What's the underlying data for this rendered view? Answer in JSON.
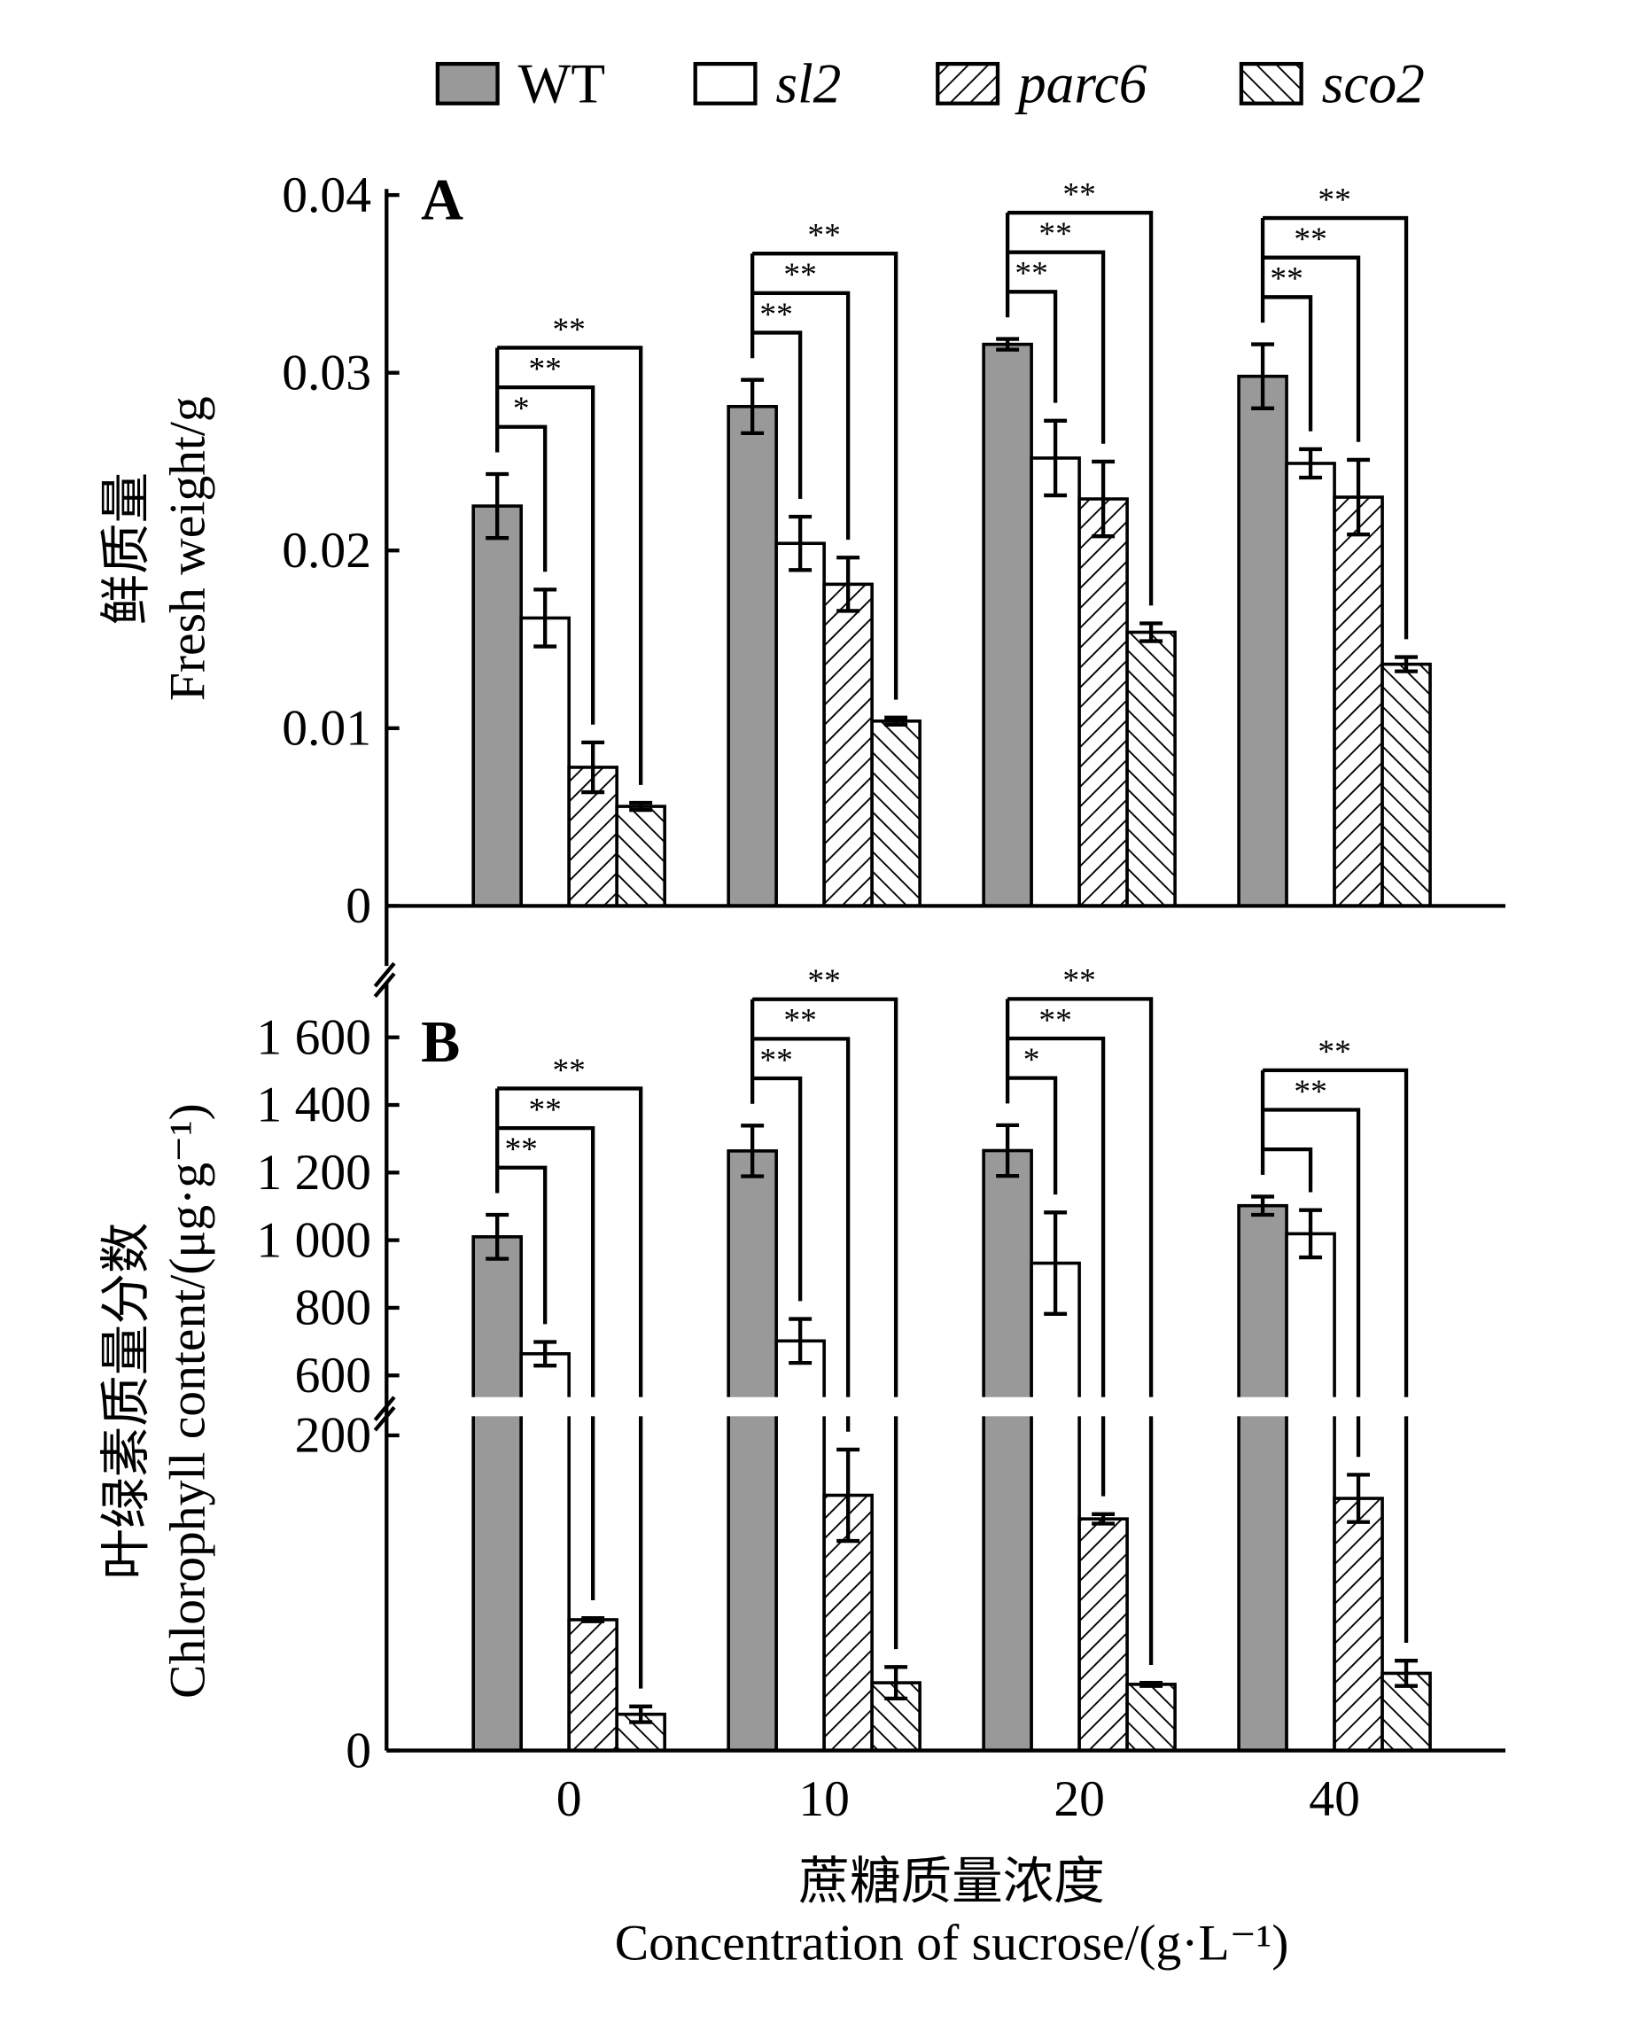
{
  "legend": [
    {
      "name": "WT",
      "fill": "#999999",
      "pattern": "solid",
      "italic": false
    },
    {
      "name": "sl2",
      "fill": "#ffffff",
      "pattern": "none",
      "italic": true
    },
    {
      "name": "parc6",
      "fill": "#ffffff",
      "pattern": "forward-hatch",
      "italic": true
    },
    {
      "name": "sco2",
      "fill": "#ffffff",
      "pattern": "back-hatch",
      "italic": true
    }
  ],
  "x_axis": {
    "title_cn": "蔗糖质量浓度",
    "title_en": "Concentration of sucrose/(g·L⁻¹)"
  },
  "chart_data": [
    {
      "type": "bar",
      "panel": "A",
      "title": "A",
      "ylabel_cn": "鲜质量",
      "ylabel_en": "Fresh weight/g",
      "xlabel": "Concentration of sucrose/(g·L⁻¹)",
      "categories": [
        "0",
        "10",
        "20",
        "40"
      ],
      "ylim": [
        0,
        0.04
      ],
      "yticks": [
        0,
        0.01,
        0.02,
        0.03,
        0.04
      ],
      "ytick_labels": [
        "0",
        "0.01",
        "0.02",
        "0.03",
        "0.04"
      ],
      "series": [
        {
          "name": "WT",
          "values": [
            0.0225,
            0.0281,
            0.0316,
            0.0298
          ],
          "errors": [
            0.0018,
            0.0015,
            0.0003,
            0.0018
          ]
        },
        {
          "name": "sl2",
          "values": [
            0.0162,
            0.0204,
            0.0252,
            0.0249
          ],
          "errors": [
            0.0016,
            0.0015,
            0.0021,
            0.0008
          ]
        },
        {
          "name": "parc6",
          "values": [
            0.0078,
            0.0181,
            0.0229,
            0.023
          ],
          "errors": [
            0.0014,
            0.0015,
            0.0021,
            0.0021
          ]
        },
        {
          "name": "sco2",
          "values": [
            0.0056,
            0.0104,
            0.0154,
            0.0136
          ],
          "errors": [
            0.0002,
            0.0002,
            0.0005,
            0.0004
          ]
        }
      ],
      "significance": [
        [
          {
            "target": "sl2",
            "label": "*"
          },
          {
            "target": "parc6",
            "label": "**"
          },
          {
            "target": "sco2",
            "label": "**"
          }
        ],
        [
          {
            "target": "sl2",
            "label": "**"
          },
          {
            "target": "parc6",
            "label": "**"
          },
          {
            "target": "sco2",
            "label": "**"
          }
        ],
        [
          {
            "target": "sl2",
            "label": "**"
          },
          {
            "target": "parc6",
            "label": "**"
          },
          {
            "target": "sco2",
            "label": "**"
          }
        ],
        [
          {
            "target": "sl2",
            "label": "**"
          },
          {
            "target": "parc6",
            "label": "**"
          },
          {
            "target": "sco2",
            "label": "**"
          }
        ]
      ]
    },
    {
      "type": "bar",
      "panel": "B",
      "title": "B",
      "ylabel_cn": "叶绿素质量分数",
      "ylabel_en": "Chlorophyll content/(μg·g⁻¹)",
      "xlabel": "Concentration of sucrose/(g·L⁻¹)",
      "categories": [
        "0",
        "10",
        "20",
        "40"
      ],
      "ylim": [
        0,
        1700
      ],
      "axis_break": [
        200,
        600
      ],
      "yticks": [
        0,
        200,
        600,
        800,
        1000,
        1200,
        1400,
        1600
      ],
      "ytick_labels": [
        "0",
        "200",
        "600",
        "800",
        "1 000",
        "1 200",
        "1 400",
        "1 600"
      ],
      "series": [
        {
          "name": "WT",
          "values": [
            1010,
            1264,
            1265,
            1102
          ],
          "errors": [
            65,
            75,
            75,
            27
          ]
        },
        {
          "name": "sl2",
          "values": [
            664,
            702,
            932,
            1019
          ],
          "errors": [
            35,
            65,
            150,
            70
          ]
        },
        {
          "name": "parc6",
          "values": [
            83,
            162,
            147,
            160
          ],
          "errors": [
            1,
            29,
            3,
            15
          ]
        },
        {
          "name": "sco2",
          "values": [
            23,
            43,
            42,
            49
          ],
          "errors": [
            5,
            10,
            1,
            8
          ]
        }
      ],
      "significance": [
        [
          {
            "target": "sl2",
            "label": "**"
          },
          {
            "target": "parc6",
            "label": "**"
          },
          {
            "target": "sco2",
            "label": "**"
          }
        ],
        [
          {
            "target": "sl2",
            "label": "**"
          },
          {
            "target": "parc6",
            "label": "**"
          },
          {
            "target": "sco2",
            "label": "**"
          }
        ],
        [
          {
            "target": "sl2",
            "label": "*"
          },
          {
            "target": "parc6",
            "label": "**"
          },
          {
            "target": "sco2",
            "label": "**"
          }
        ],
        [
          {
            "target": "sl2",
            "label": ""
          },
          {
            "target": "parc6",
            "label": "**"
          },
          {
            "target": "sco2",
            "label": "**"
          }
        ]
      ]
    }
  ]
}
